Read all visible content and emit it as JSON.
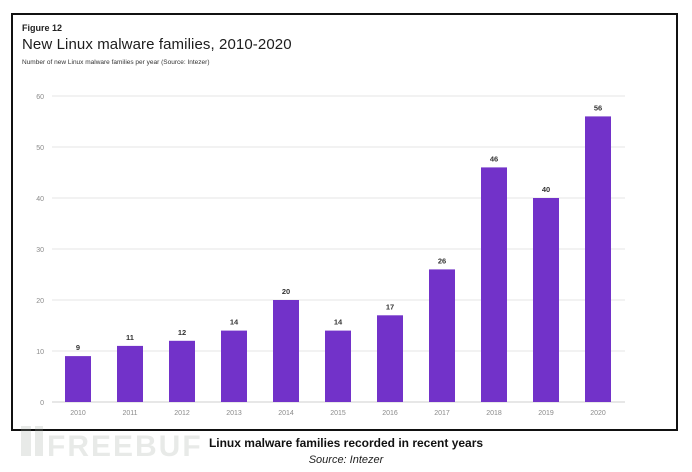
{
  "figure": {
    "label": "Figure 12",
    "title": "New Linux malware families, 2010-2020",
    "subtitle": "Number of new Linux malware families per year (Source: Intezer)"
  },
  "caption": {
    "text": "Linux malware families recorded in recent years",
    "source": "Source: Intezer"
  },
  "watermark": {
    "text": "FREEBUF"
  },
  "colors": {
    "bar": "#7232c9",
    "grid": "#e6e6e6",
    "axis_text": "#8a8a8a",
    "label_text": "#333333"
  },
  "chart_data": {
    "type": "bar",
    "title": "New Linux malware families, 2010-2020",
    "subtitle": "Number of new Linux malware families per year (Source: Intezer)",
    "xlabel": "",
    "ylabel": "",
    "categories": [
      "2010",
      "2011",
      "2012",
      "2013",
      "2014",
      "2015",
      "2016",
      "2017",
      "2018",
      "2019",
      "2020"
    ],
    "values": [
      9,
      11,
      12,
      14,
      20,
      14,
      17,
      26,
      46,
      40,
      56
    ],
    "ylim": [
      0,
      60
    ],
    "yticks": [
      0,
      10,
      20,
      30,
      40,
      50,
      60
    ],
    "grid": true,
    "data_labels": true
  }
}
